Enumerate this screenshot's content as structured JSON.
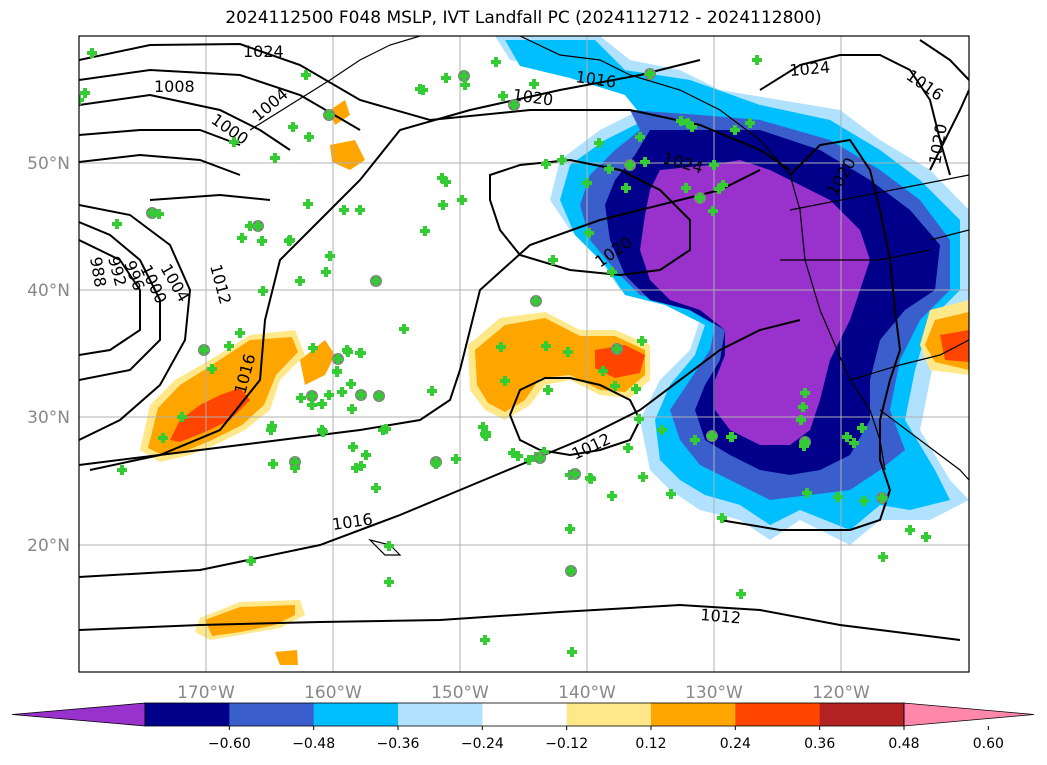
{
  "title": "2024112500 F048 MSLP, IVT Landfall PC (2024112712 - 2024112800)",
  "lon_labels": [
    "170°W",
    "160°W",
    "150°W",
    "140°W",
    "130°W",
    "120°W"
  ],
  "lat_labels": [
    "50°N",
    "40°N",
    "30°N",
    "20°N"
  ],
  "isobar_labels": [
    "1024",
    "1008",
    "1000",
    "1004",
    "1016",
    "1020",
    "1024",
    "1024",
    "1016",
    "1020",
    "1020",
    "1020",
    "988",
    "992",
    "996",
    "1000",
    "1004",
    "1012",
    "1016",
    "1012",
    "1016",
    "1012"
  ],
  "colorbar": {
    "ticks": [
      "−0.60",
      "−0.48",
      "−0.36",
      "−0.24",
      "−0.12",
      "0.12",
      "0.24",
      "0.36",
      "0.48",
      "0.60"
    ],
    "colors": [
      "#9932cc",
      "#00008b",
      "#3a5fcd",
      "#00bfff",
      "#b0e2ff",
      "#ffffff",
      "#ffe88a",
      "#ffa500",
      "#ff4500",
      "#b22222",
      "#ff88aa"
    ]
  },
  "colors": {
    "neg_60": "#9932cc",
    "neg_48": "#00008b",
    "neg_36": "#3a5fcd",
    "neg_24": "#00bfff",
    "neg_12": "#b0e2ff",
    "pos_12": "#ffe88a",
    "pos_24": "#ffa500",
    "pos_36": "#ff4500",
    "pos_48": "#b22222",
    "marker_cross": "#33cc33",
    "marker_dot": "#808080"
  }
}
